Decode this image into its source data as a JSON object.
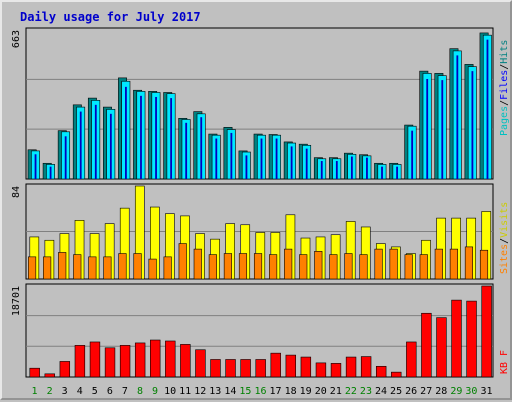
{
  "title": "Daily usage for July 2017",
  "colors": {
    "background": "#c0c0c0",
    "plot_bg": "#c0c0c0",
    "grid": "#808080",
    "hits": "#00c0c0",
    "files": "#00e8ff",
    "pages": "#008080",
    "visits": "#ffff00",
    "sites": "#ff8000",
    "kbytes": "#ff0000",
    "weekend_day": "#008000",
    "weekday": "#000080",
    "title": "#0000cc"
  },
  "legend": {
    "panel1": [
      {
        "text": "Pages",
        "color": "#00c0c0"
      },
      {
        "text": "/",
        "color": "#000000"
      },
      {
        "text": "Files",
        "color": "#0000ff"
      },
      {
        "text": "/",
        "color": "#000000"
      },
      {
        "text": "Hits",
        "color": "#008080"
      }
    ],
    "panel2": [
      {
        "text": "Sites",
        "color": "#ff8000"
      },
      {
        "text": "/",
        "color": "#000000"
      },
      {
        "text": "Visits",
        "color": "#cccc00"
      }
    ],
    "panel3": [
      {
        "text": "KB F",
        "color": "#ff0000"
      }
    ]
  },
  "chart_data": [
    {
      "type": "bar",
      "panel": "hits-files-pages",
      "y_max_label": "663",
      "ylim": [
        0,
        663
      ],
      "categories": [
        "1",
        "2",
        "3",
        "4",
        "5",
        "6",
        "7",
        "8",
        "9",
        "10",
        "11",
        "12",
        "13",
        "14",
        "15",
        "16",
        "17",
        "18",
        "19",
        "20",
        "21",
        "22",
        "23",
        "24",
        "25",
        "26",
        "27",
        "28",
        "29",
        "30",
        "31"
      ],
      "series": [
        {
          "name": "Hits",
          "values": [
            130,
            70,
            215,
            330,
            360,
            320,
            450,
            395,
            390,
            385,
            270,
            300,
            200,
            230,
            125,
            200,
            198,
            165,
            155,
            95,
            95,
            115,
            108,
            70,
            70,
            240,
            480,
            470,
            580,
            510,
            650
          ]
        },
        {
          "name": "Files",
          "values": [
            125,
            65,
            210,
            320,
            350,
            310,
            435,
            390,
            385,
            380,
            265,
            290,
            195,
            220,
            120,
            195,
            195,
            160,
            150,
            90,
            90,
            110,
            103,
            65,
            65,
            235,
            470,
            460,
            570,
            500,
            640
          ]
        },
        {
          "name": "Pages",
          "values": [
            110,
            55,
            190,
            300,
            330,
            290,
            410,
            370,
            365,
            360,
            250,
            275,
            180,
            205,
            105,
            180,
            180,
            145,
            135,
            80,
            80,
            100,
            95,
            55,
            55,
            215,
            445,
            440,
            550,
            480,
            620
          ]
        }
      ]
    },
    {
      "type": "bar",
      "panel": "visits-sites",
      "y_max_label": "84",
      "ylim": [
        0,
        84
      ],
      "categories": [
        "1",
        "2",
        "3",
        "4",
        "5",
        "6",
        "7",
        "8",
        "9",
        "10",
        "11",
        "12",
        "13",
        "14",
        "15",
        "16",
        "17",
        "18",
        "19",
        "20",
        "21",
        "22",
        "23",
        "24",
        "25",
        "26",
        "27",
        "28",
        "29",
        "30",
        "31"
      ],
      "series": [
        {
          "name": "Visits",
          "values": [
            38,
            35,
            41,
            53,
            41,
            50,
            64,
            84,
            65,
            59,
            57,
            41,
            36,
            50,
            49,
            42,
            42,
            58,
            37,
            38,
            40,
            52,
            47,
            32,
            29,
            23,
            35,
            55,
            55,
            55,
            61
          ]
        },
        {
          "name": "Sites",
          "values": [
            20,
            20,
            24,
            22,
            20,
            20,
            23,
            23,
            18,
            20,
            32,
            27,
            22,
            23,
            23,
            23,
            22,
            27,
            22,
            25,
            22,
            23,
            22,
            27,
            27,
            22,
            22,
            27,
            27,
            29,
            26
          ]
        }
      ]
    },
    {
      "type": "bar",
      "panel": "kbytes",
      "y_max_label": "18701",
      "ylim": [
        0,
        18701
      ],
      "categories": [
        "1",
        "2",
        "3",
        "4",
        "5",
        "6",
        "7",
        "8",
        "9",
        "10",
        "11",
        "12",
        "13",
        "14",
        "15",
        "16",
        "17",
        "18",
        "19",
        "20",
        "21",
        "22",
        "23",
        "24",
        "25",
        "26",
        "27",
        "28",
        "29",
        "30",
        "31"
      ],
      "series": [
        {
          "name": "KB F",
          "values": [
            1810,
            650,
            3200,
            6500,
            7200,
            6000,
            6500,
            7000,
            7600,
            7400,
            6700,
            5600,
            3600,
            3600,
            3600,
            3600,
            4900,
            4500,
            4100,
            2900,
            2800,
            4100,
            4200,
            2200,
            1000,
            7200,
            13100,
            12200,
            15800,
            15600,
            18701
          ]
        }
      ]
    }
  ],
  "x_labels": {
    "weekend_days": [
      "1",
      "2",
      "8",
      "9",
      "15",
      "16",
      "22",
      "23",
      "29",
      "30"
    ]
  }
}
